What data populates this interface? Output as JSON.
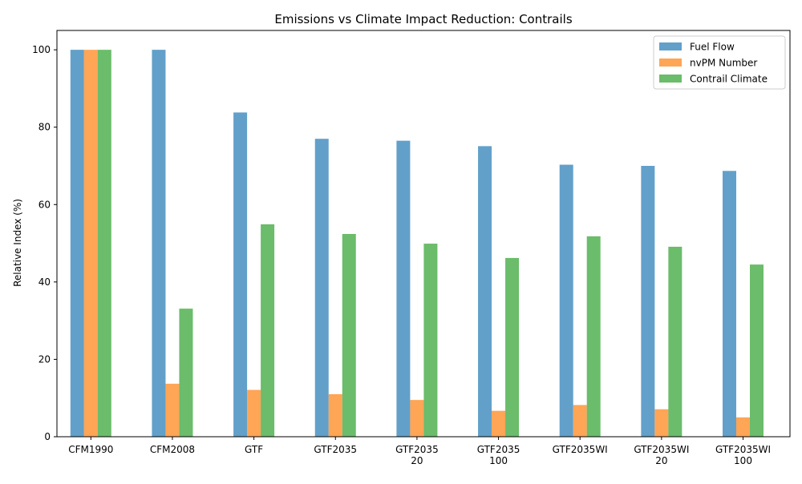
{
  "chart_data": {
    "type": "bar",
    "title": "Emissions vs Climate Impact Reduction: Contrails",
    "xlabel": "",
    "ylabel": "Relative Index (%)",
    "ylim": [
      0,
      105
    ],
    "yticks": [
      0,
      20,
      40,
      60,
      80,
      100
    ],
    "grid": false,
    "legend_position": "top-right",
    "categories": [
      [
        "CFM1990"
      ],
      [
        "CFM2008"
      ],
      [
        "GTF"
      ],
      [
        "GTF2035"
      ],
      [
        "GTF2035",
        "20"
      ],
      [
        "GTF2035",
        "100"
      ],
      [
        "GTF2035WI"
      ],
      [
        "GTF2035WI",
        "20"
      ],
      [
        "GTF2035WI",
        "100"
      ]
    ],
    "series": [
      {
        "name": "Fuel Flow",
        "color": "#1f77b4",
        "values": [
          100,
          100,
          83.8,
          77.0,
          76.5,
          75.1,
          70.3,
          70.0,
          68.7
        ]
      },
      {
        "name": "nvPM Number",
        "color": "#ff7f0e",
        "values": [
          100,
          13.7,
          12.1,
          11.0,
          9.5,
          6.7,
          8.2,
          7.1,
          5.0
        ]
      },
      {
        "name": "Contrail Climate",
        "color": "#2ca02c",
        "values": [
          100,
          33.1,
          54.9,
          52.4,
          49.9,
          46.2,
          51.8,
          49.1,
          44.5
        ]
      }
    ]
  }
}
